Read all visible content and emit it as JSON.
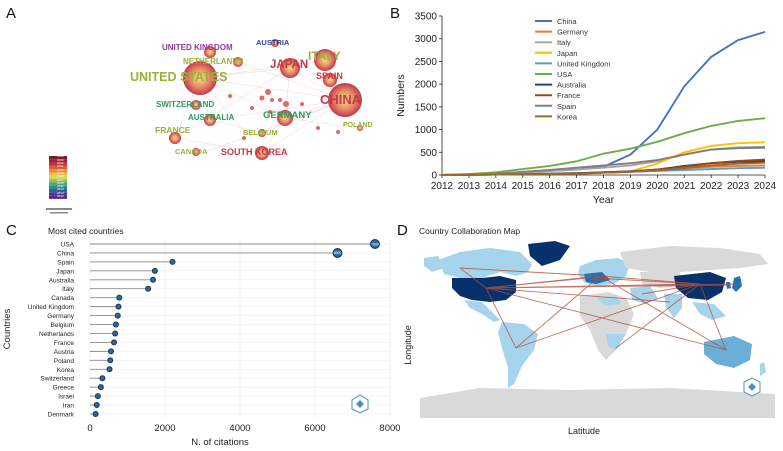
{
  "panels": {
    "a": {
      "letter": "A",
      "countries": [
        {
          "name": "UNITED KINGDOM",
          "color": "#8e3aa0"
        },
        {
          "name": "AUSTRIA",
          "color": "#2b3f9e"
        },
        {
          "name": "ITALY",
          "color": "#9ab03a"
        },
        {
          "name": "NETHERLANDS",
          "color": "#9ab03a"
        },
        {
          "name": "JAPAN",
          "color": "#c2384a"
        },
        {
          "name": "UNITED STATES",
          "color": "#9ab03a"
        },
        {
          "name": "SPAIN",
          "color": "#c2384a"
        },
        {
          "name": "CHINA",
          "color": "#c2384a"
        },
        {
          "name": "SWITZERLAND",
          "color": "#2e9a5e"
        },
        {
          "name": "GERMANY",
          "color": "#2e9a5e"
        },
        {
          "name": "AUSTRALIA",
          "color": "#2e9a5e"
        },
        {
          "name": "FRANCE",
          "color": "#9ab03a"
        },
        {
          "name": "BELGIUM",
          "color": "#9ab03a"
        },
        {
          "name": "POLAND",
          "color": "#9ab03a"
        },
        {
          "name": "CANADA",
          "color": "#9ab03a"
        },
        {
          "name": "SOUTH KOREA",
          "color": "#c2384a"
        }
      ],
      "legend_years": [
        "2024",
        "2023",
        "2022",
        "2021",
        "2020",
        "2019",
        "2018",
        "2017",
        "2016",
        "2015",
        "2014",
        "2013",
        "2012"
      ]
    },
    "b": {
      "letter": "B"
    },
    "c": {
      "letter": "C",
      "title": "Most cited countries"
    },
    "d": {
      "letter": "D",
      "title": "Country Collaboration Map",
      "xlabel": "Latitude",
      "ylabel": "Longitude"
    }
  },
  "chart_data": [
    {
      "type": "line",
      "panel": "B",
      "title": "",
      "xlabel": "Year",
      "ylabel": "Numbers",
      "ylim": [
        0,
        3500
      ],
      "yticks": [
        0,
        500,
        1000,
        1500,
        2000,
        2500,
        3000,
        3500
      ],
      "x": [
        2012,
        2013,
        2014,
        2015,
        2016,
        2017,
        2018,
        2019,
        2020,
        2021,
        2022,
        2023,
        2024
      ],
      "legend_position": "top-center",
      "series": [
        {
          "name": "China",
          "color": "#4472c4",
          "values": [
            0,
            10,
            30,
            60,
            90,
            120,
            180,
            450,
            1000,
            1950,
            2600,
            2970,
            3150
          ]
        },
        {
          "name": "Germany",
          "color": "#ed7d31",
          "values": [
            0,
            5,
            10,
            20,
            30,
            40,
            60,
            80,
            120,
            150,
            180,
            200,
            210
          ]
        },
        {
          "name": "Italy",
          "color": "#a5a5a5",
          "values": [
            0,
            10,
            30,
            60,
            90,
            120,
            160,
            210,
            300,
            450,
            560,
            610,
            620
          ]
        },
        {
          "name": "Japan",
          "color": "#ffc000",
          "values": [
            0,
            5,
            10,
            20,
            30,
            40,
            60,
            80,
            250,
            500,
            640,
            700,
            720
          ]
        },
        {
          "name": "United Kingdom",
          "color": "#5b9bd5",
          "values": [
            0,
            5,
            10,
            20,
            30,
            40,
            55,
            70,
            90,
            110,
            130,
            150,
            160
          ]
        },
        {
          "name": "USA",
          "color": "#70ad47",
          "values": [
            0,
            20,
            60,
            130,
            200,
            300,
            470,
            580,
            730,
            920,
            1080,
            1190,
            1250
          ]
        },
        {
          "name": "Australia",
          "color": "#264478",
          "values": [
            0,
            5,
            10,
            15,
            25,
            40,
            60,
            80,
            120,
            200,
            260,
            290,
            300
          ]
        },
        {
          "name": "France",
          "color": "#9e480e",
          "values": [
            0,
            5,
            10,
            15,
            20,
            30,
            50,
            70,
            120,
            180,
            260,
            310,
            340
          ]
        },
        {
          "name": "Spain",
          "color": "#7f7f7f",
          "values": [
            0,
            10,
            30,
            70,
            110,
            160,
            210,
            260,
            330,
            450,
            560,
            590,
            600
          ]
        },
        {
          "name": "Korea",
          "color": "#a5662a",
          "values": [
            0,
            5,
            10,
            15,
            20,
            30,
            50,
            70,
            100,
            150,
            210,
            250,
            270
          ]
        }
      ]
    },
    {
      "type": "scatter",
      "panel": "C",
      "title": "Most cited countries",
      "xlabel": "N. of citations",
      "ylabel": "Countries",
      "xlim": [
        0,
        8000
      ],
      "xticks": [
        0,
        2000,
        4000,
        6000,
        8000
      ],
      "categories": [
        "USA",
        "China",
        "Spain",
        "Japan",
        "Australia",
        "Italy",
        "Canada",
        "United Kingdom",
        "Germany",
        "Belgium",
        "Netherlands",
        "France",
        "Austria",
        "Poland",
        "Korea",
        "Switzerland",
        "Greece",
        "Israel",
        "Iran",
        "Denmark"
      ],
      "values": [
        7600,
        6600,
        2200,
        1730,
        1680,
        1550,
        780,
        760,
        740,
        690,
        670,
        640,
        560,
        540,
        520,
        330,
        290,
        210,
        180,
        150
      ],
      "point_labels": [
        "7600",
        "6600",
        "",
        "",
        "",
        "",
        "",
        "",
        "",
        "",
        "",
        "",
        "",
        "",
        "",
        "",
        "",
        "",
        "",
        ""
      ]
    }
  ]
}
